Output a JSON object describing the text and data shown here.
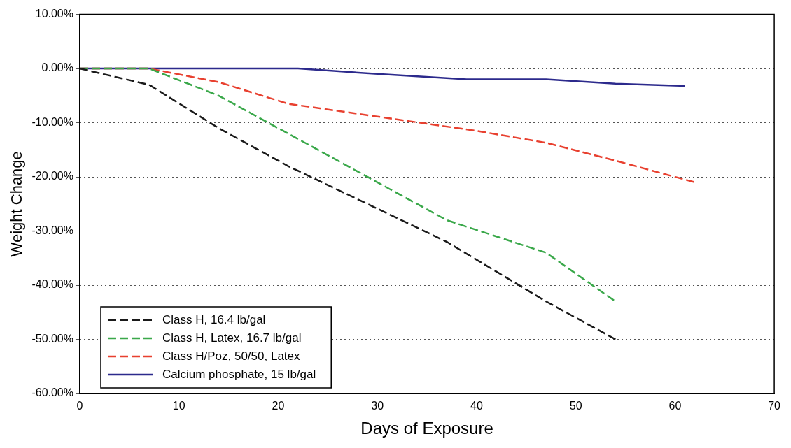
{
  "chart_data": {
    "type": "line",
    "xlabel": "Days of Exposure",
    "ylabel": "Weight Change",
    "xlim": [
      0,
      70
    ],
    "xticks": [
      0,
      10,
      20,
      30,
      40,
      50,
      60,
      70
    ],
    "ylim": [
      -60,
      10
    ],
    "yticks": [
      {
        "value": 10,
        "label": "10.00%"
      },
      {
        "value": 0,
        "label": "0.00%"
      },
      {
        "value": -10,
        "label": "-10.00%"
      },
      {
        "value": -20,
        "label": "-20.00%"
      },
      {
        "value": -30,
        "label": "-30.00%"
      },
      {
        "value": -40,
        "label": "-40.00%"
      },
      {
        "value": -50,
        "label": "-50.00%"
      },
      {
        "value": -60,
        "label": "-60.00%"
      }
    ],
    "grid": "y",
    "legend": "bottom left",
    "marker": "none",
    "series": [
      {
        "name": "Class H, 16.4 lb/gal",
        "color": "#1a1a1a",
        "line_style": "dashed",
        "x": [
          0,
          7,
          14,
          21,
          37,
          47,
          54
        ],
        "values": [
          0,
          -3,
          -11,
          -18,
          -32,
          -43,
          -50
        ]
      },
      {
        "name": "Class H, Latex, 16.7 lb/gal",
        "color": "#3aa84a",
        "line_style": "dashed",
        "x": [
          0,
          7,
          14,
          21,
          37,
          47,
          54
        ],
        "values": [
          0,
          0,
          -5,
          -12,
          -28,
          -34,
          -43
        ]
      },
      {
        "name": "Class H/Poz, 50/50, Latex",
        "color": "#e8402f",
        "line_style": "dashed",
        "x": [
          0,
          7,
          14,
          21,
          40,
          47,
          54,
          62
        ],
        "values": [
          0,
          0,
          -2.5,
          -6.5,
          -11.5,
          -13.7,
          -17,
          -21
        ]
      },
      {
        "name": "Calcium phosphate, 15 lb/gal",
        "color": "#2c2a8c",
        "line_style": "solid",
        "x": [
          0,
          22,
          30,
          39,
          47,
          54,
          61
        ],
        "values": [
          0,
          0,
          -1,
          -2,
          -2,
          -2.8,
          -3.2
        ]
      }
    ]
  }
}
